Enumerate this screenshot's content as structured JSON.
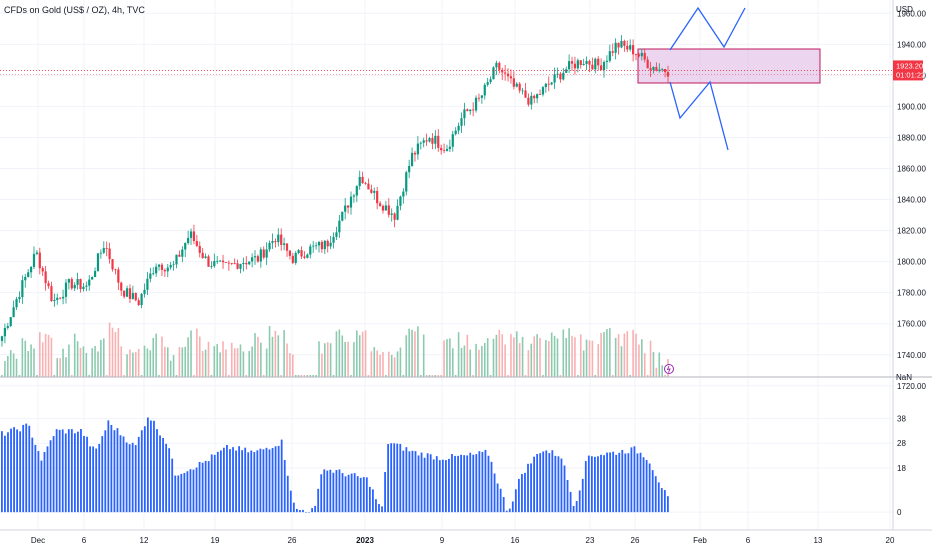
{
  "chart_data": {
    "type": "candlestick",
    "title": "CFDs on Gold (US$ / OZ), 4h, TVC",
    "currency": "USD",
    "price_axis": {
      "ticks": [
        "1960.00",
        "1940.00",
        "1920.00",
        "1900.00",
        "1880.00",
        "1860.00",
        "1840.00",
        "1820.00",
        "1800.00",
        "1780.00",
        "1760.00",
        "1740.00",
        "1720.00"
      ],
      "range": [
        1716,
        1966
      ]
    },
    "last_price": "1923.20",
    "countdown": "01:01:22",
    "lower_pane": {
      "label": "NaN",
      "ticks": [
        "38",
        "28",
        "18",
        "0"
      ],
      "range": [
        -4,
        48
      ],
      "color": "#2962ff"
    },
    "x_ticks": [
      "Dec",
      "6",
      "12",
      "19",
      "26",
      "2023",
      "9",
      "16",
      "23",
      "26",
      "Feb",
      "6",
      "13",
      "20"
    ],
    "bullish_color": "#089981",
    "bearish_color": "#f23645",
    "close_path": [
      [
        1752,
        1752
      ],
      [
        1780,
        1788
      ],
      [
        1806,
        1800
      ],
      [
        1774,
        1778
      ],
      [
        1786,
        1790
      ],
      [
        1784,
        1792
      ],
      [
        1812,
        1817
      ],
      [
        1782,
        1788
      ],
      [
        1774,
        1775
      ],
      [
        1799,
        1802
      ],
      [
        1796,
        1796
      ],
      [
        1818,
        1820
      ],
      [
        1800,
        1797
      ],
      [
        1796,
        1796
      ],
      [
        1800,
        1799
      ],
      [
        1802,
        1808
      ],
      [
        1816,
        1819
      ],
      [
        1802,
        1800
      ],
      [
        1808,
        1810
      ],
      [
        1811,
        1809
      ],
      [
        1831,
        1828
      ],
      [
        1856,
        1862
      ],
      [
        1840,
        1838
      ],
      [
        1830,
        1832
      ],
      [
        1868,
        1880
      ],
      [
        1881,
        1878
      ],
      [
        1873,
        1873
      ],
      [
        1894,
        1896
      ],
      [
        1905,
        1910
      ],
      [
        1926,
        1928
      ],
      [
        1912,
        1915
      ],
      [
        1903,
        1900
      ],
      [
        1914,
        1916
      ],
      [
        1924,
        1930
      ],
      [
        1930,
        1927
      ],
      [
        1926,
        1930
      ],
      [
        1940,
        1942
      ],
      [
        1936,
        1930
      ],
      [
        1926,
        1925
      ],
      [
        1923,
        1923
      ]
    ],
    "volume_rel": [
      0.35,
      0.55,
      0.8,
      0.3,
      0.65,
      0.5,
      0.95,
      0.45,
      0.55,
      0.7,
      0.4,
      0.85,
      0.45,
      0.6,
      0.5,
      0.7,
      0.9,
      0.4,
      0.65,
      0.55,
      0.75,
      0.8,
      0.5,
      0.45,
      0.85,
      0.9,
      0.6,
      0.7,
      0.55,
      0.85,
      0.75,
      0.6,
      0.7,
      0.85,
      0.65,
      0.8,
      0.95,
      0.75,
      0.55,
      0.2
    ],
    "indicator_rel": [
      [
        0,
        0.72
      ],
      [
        0.04,
        0.8
      ],
      [
        0.06,
        0.48
      ],
      [
        0.08,
        0.75
      ],
      [
        0.12,
        0.75
      ],
      [
        0.14,
        0.55
      ],
      [
        0.16,
        0.83
      ],
      [
        0.2,
        0.6
      ],
      [
        0.22,
        0.9
      ],
      [
        0.25,
        0.62
      ],
      [
        0.26,
        0.35
      ],
      [
        0.3,
        0.45
      ],
      [
        0.34,
        0.6
      ],
      [
        0.38,
        0.55
      ],
      [
        0.42,
        0.65
      ],
      [
        0.44,
        0.02
      ],
      [
        0.47,
        0.02
      ],
      [
        0.48,
        0.4
      ],
      [
        0.5,
        0.38
      ],
      [
        0.55,
        0.3
      ],
      [
        0.57,
        0.0
      ],
      [
        0.58,
        0.65
      ],
      [
        0.62,
        0.55
      ],
      [
        0.66,
        0.5
      ],
      [
        0.7,
        0.52
      ],
      [
        0.73,
        0.55
      ],
      [
        0.76,
        0.0
      ],
      [
        0.78,
        0.35
      ],
      [
        0.81,
        0.58
      ],
      [
        0.84,
        0.52
      ],
      [
        0.86,
        0.05
      ],
      [
        0.88,
        0.52
      ],
      [
        0.92,
        0.55
      ],
      [
        0.95,
        0.58
      ],
      [
        0.97,
        0.5
      ],
      [
        1.0,
        0.12
      ]
    ]
  }
}
